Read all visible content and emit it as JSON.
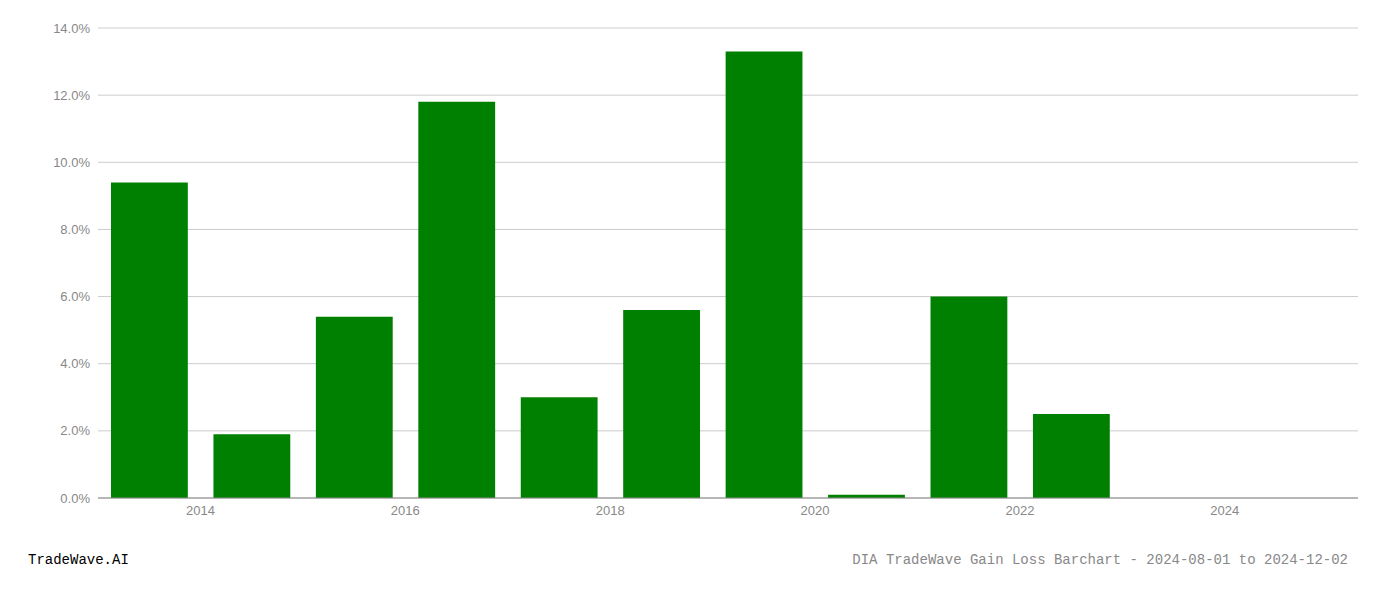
{
  "chart_data": {
    "type": "bar",
    "title": "DIA TradeWave Gain Loss Barchart - 2024-08-01 to 2024-12-02",
    "annotations": [
      "TradeWave.AI"
    ],
    "x": [
      2013,
      2014,
      2015,
      2016,
      2017,
      2018,
      2019,
      2020,
      2021,
      2022,
      2023,
      2024
    ],
    "values": [
      0.094,
      0.019,
      0.054,
      0.118,
      0.03,
      0.056,
      0.133,
      0.001,
      0.06,
      0.025,
      0.0,
      0.0
    ],
    "color": "#008000",
    "xlim": [
      2012.5,
      2024.8
    ],
    "xticks": [
      {
        "value": 2013.5,
        "label": "2014"
      },
      {
        "value": 2015.5,
        "label": "2016"
      },
      {
        "value": 2017.5,
        "label": "2018"
      },
      {
        "value": 2019.5,
        "label": "2020"
      },
      {
        "value": 2021.5,
        "label": "2022"
      },
      {
        "value": 2023.5,
        "label": "2024"
      }
    ],
    "ylim": [
      0.0,
      0.14
    ],
    "yticks": [
      {
        "value": 0.0,
        "label": "0.0%"
      },
      {
        "value": 0.02,
        "label": "2.0%"
      },
      {
        "value": 0.04,
        "label": "4.0%"
      },
      {
        "value": 0.06,
        "label": "6.0%"
      },
      {
        "value": 0.08,
        "label": "8.0%"
      },
      {
        "value": 0.1,
        "label": "10.0%"
      },
      {
        "value": 0.12,
        "label": "12.0%"
      },
      {
        "value": 0.14,
        "label": "14.0%"
      }
    ],
    "grid": true
  }
}
